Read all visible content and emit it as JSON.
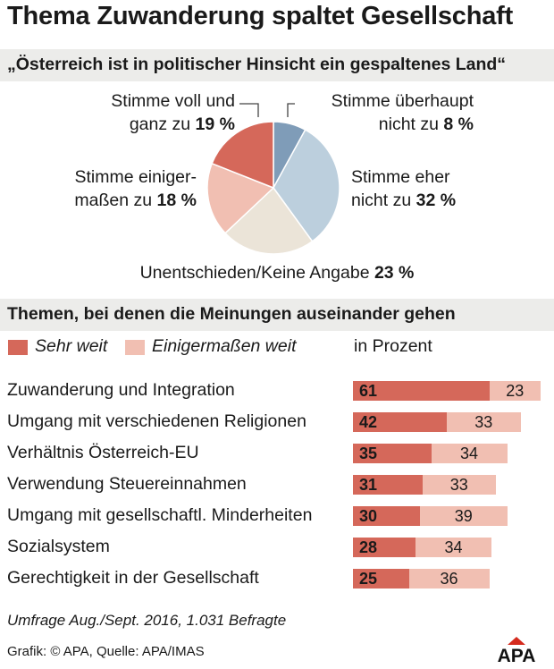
{
  "title": "Thema Zuwanderung spaltet Gesellschaft",
  "question": "„Österreich ist in politischer Hinsicht ein gespaltenes Land“",
  "pie_labels": {
    "voll": {
      "line1": "Stimme voll und",
      "line2_prefix": "ganz zu ",
      "value": "19 %"
    },
    "ueberhaupt": {
      "line1": "Stimme überhaupt",
      "line2_prefix": "nicht zu ",
      "value": "8 %"
    },
    "einiger": {
      "line1": "Stimme einiger-",
      "line2_prefix": "maßen zu ",
      "value": "18 %"
    },
    "eher": {
      "line1": "Stimme eher",
      "line2_prefix": "nicht zu ",
      "value": "32 %"
    },
    "unentschieden": {
      "line1_prefix": "Unentschieden/Keine Angabe ",
      "value": "23 %"
    }
  },
  "section2_title": "Themen, bei denen die Meinungen auseinander gehen",
  "legend": {
    "series1": "Sehr weit",
    "series2": "Einigermaßen weit",
    "unit": "in Prozent"
  },
  "footnote": "Umfrage Aug./Sept. 2016, 1.031 Befragte",
  "credit": "Grafik: © APA, Quelle: APA/IMAS",
  "logo_text": "APA",
  "colors": {
    "dark_red": "#d5685a",
    "light_red": "#f1bfb2",
    "blue": "#7f9cb8",
    "light_blue": "#bccfdd",
    "beige": "#ebe4d8",
    "band": "#ececea"
  },
  "chart_data": [
    {
      "type": "pie",
      "title": "„Österreich ist in politischer Hinsicht ein gespaltenes Land“",
      "slices": [
        {
          "label": "Stimme überhaupt nicht zu",
          "value": 8,
          "color": "#7f9cb8"
        },
        {
          "label": "Stimme eher nicht zu",
          "value": 32,
          "color": "#bccfdd"
        },
        {
          "label": "Unentschieden/Keine Angabe",
          "value": 23,
          "color": "#ebe4d8"
        },
        {
          "label": "Stimme einigermaßen zu",
          "value": 18,
          "color": "#f1bfb2"
        },
        {
          "label": "Stimme voll und ganz zu",
          "value": 19,
          "color": "#d5685a"
        }
      ],
      "unit": "%"
    },
    {
      "type": "bar",
      "orientation": "horizontal",
      "stacked": true,
      "title": "Themen, bei denen die Meinungen auseinander gehen",
      "categories": [
        "Zuwanderung und Integration",
        "Umgang mit verschiedenen Religionen",
        "Verhältnis Österreich-EU",
        "Verwendung Steuereinnahmen",
        "Umgang mit gesellschaftl. Minderheiten",
        "Sozialsystem",
        "Gerechtigkeit in der Gesellschaft"
      ],
      "series": [
        {
          "name": "Sehr weit",
          "values": [
            61,
            42,
            35,
            31,
            30,
            28,
            25
          ],
          "color": "#d5685a"
        },
        {
          "name": "Einigermaßen weit",
          "values": [
            23,
            33,
            34,
            33,
            39,
            34,
            36
          ],
          "color": "#f1bfb2"
        }
      ],
      "unit": "in Prozent",
      "xlim": [
        0,
        100
      ]
    }
  ]
}
